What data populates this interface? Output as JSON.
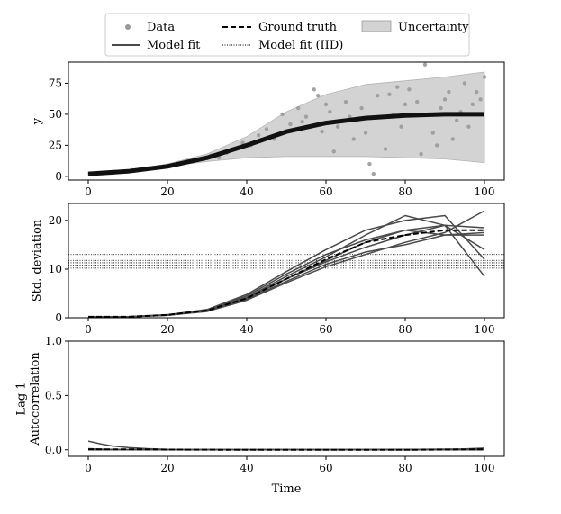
{
  "legend": {
    "data": "Data",
    "ground_truth": "Ground truth",
    "uncertainty": "Uncertainty",
    "model_fit": "Model fit",
    "model_fit_iid": "Model fit (IID)"
  },
  "colors": {
    "data": "#9a9a9a",
    "fit": "#4a4a4a",
    "band": "#d3d3d3",
    "truth": "#000000"
  },
  "chart_data": [
    {
      "type": "scatter",
      "xlabel": "",
      "ylabel": "y",
      "xlim": [
        -5,
        105
      ],
      "ylim": [
        -3,
        92
      ],
      "xticks": [
        0,
        20,
        40,
        60,
        80,
        100
      ],
      "yticks": [
        0,
        25,
        50,
        75
      ],
      "uncertainty_band": {
        "x": [
          0,
          10,
          20,
          30,
          40,
          50,
          60,
          70,
          80,
          90,
          100
        ],
        "lower": [
          1,
          4,
          8,
          12,
          15,
          16,
          16,
          16,
          15,
          14,
          11
        ],
        "upper": [
          3,
          5,
          10,
          18,
          32,
          52,
          66,
          74,
          77,
          80,
          84
        ]
      },
      "model_fit": {
        "x": [
          0,
          10,
          20,
          30,
          40,
          50,
          60,
          70,
          80,
          90,
          100
        ],
        "y": [
          2,
          4,
          8,
          15,
          25,
          36,
          43,
          47,
          49,
          50,
          50
        ]
      },
      "data_points": [
        [
          1,
          2
        ],
        [
          3,
          2.5
        ],
        [
          5,
          3
        ],
        [
          7,
          3.5
        ],
        [
          9,
          4
        ],
        [
          11,
          5
        ],
        [
          13,
          5.5
        ],
        [
          15,
          6.5
        ],
        [
          17,
          7
        ],
        [
          19,
          8
        ],
        [
          21,
          9
        ],
        [
          23,
          10
        ],
        [
          25,
          12
        ],
        [
          27,
          13
        ],
        [
          29,
          14
        ],
        [
          31,
          17
        ],
        [
          33,
          15
        ],
        [
          35,
          19
        ],
        [
          37,
          22
        ],
        [
          39,
          27
        ],
        [
          41,
          25
        ],
        [
          43,
          33
        ],
        [
          45,
          38
        ],
        [
          47,
          30
        ],
        [
          49,
          50
        ],
        [
          51,
          42
        ],
        [
          53,
          55
        ],
        [
          55,
          48
        ],
        [
          57,
          70
        ],
        [
          59,
          36
        ],
        [
          61,
          52
        ],
        [
          63,
          40
        ],
        [
          65,
          60
        ],
        [
          67,
          30
        ],
        [
          69,
          55
        ],
        [
          71,
          10
        ],
        [
          73,
          65
        ],
        [
          75,
          22
        ],
        [
          77,
          50
        ],
        [
          79,
          40
        ],
        [
          81,
          70
        ],
        [
          83,
          60
        ],
        [
          85,
          90
        ],
        [
          87,
          35
        ],
        [
          89,
          55
        ],
        [
          91,
          68
        ],
        [
          93,
          45
        ],
        [
          95,
          75
        ],
        [
          97,
          58
        ],
        [
          99,
          62
        ],
        [
          100,
          80
        ],
        [
          72,
          2
        ],
        [
          88,
          25
        ],
        [
          62,
          20
        ],
        [
          58,
          65
        ],
        [
          96,
          40
        ],
        [
          68,
          45
        ],
        [
          84,
          18
        ],
        [
          76,
          66
        ],
        [
          92,
          30
        ],
        [
          54,
          44
        ],
        [
          66,
          48
        ],
        [
          78,
          72
        ],
        [
          86,
          50
        ],
        [
          94,
          52
        ],
        [
          98,
          68
        ],
        [
          70,
          35
        ],
        [
          80,
          58
        ],
        [
          90,
          62
        ],
        [
          60,
          58
        ]
      ]
    },
    {
      "type": "line",
      "xlabel": "",
      "ylabel": "Std. deviation",
      "xlim": [
        -5,
        105
      ],
      "ylim": [
        0,
        23.5
      ],
      "xticks": [
        0,
        20,
        40,
        60,
        80,
        100
      ],
      "yticks": [
        0,
        10,
        20
      ],
      "iid_levels": [
        10.2,
        10.8,
        11.3,
        11.8,
        13.0
      ],
      "ground_truth": {
        "x": [
          0,
          10,
          20,
          30,
          40,
          50,
          60,
          70,
          80,
          90,
          100
        ],
        "y": [
          0.2,
          0.2,
          0.6,
          1.5,
          4,
          8,
          12,
          15.5,
          17,
          18,
          18
        ]
      },
      "model_fits": [
        {
          "x": [
            0,
            10,
            20,
            30,
            40,
            50,
            60,
            70,
            80,
            90,
            100
          ],
          "y": [
            0.2,
            0.2,
            0.5,
            1.5,
            4,
            8,
            11.5,
            14.5,
            17,
            19,
            18.5
          ]
        },
        {
          "x": [
            0,
            10,
            20,
            30,
            40,
            50,
            60,
            70,
            80,
            90,
            100
          ],
          "y": [
            0.2,
            0.2,
            0.6,
            1.6,
            4.5,
            9,
            13,
            16,
            18,
            19,
            14
          ]
        },
        {
          "x": [
            0,
            10,
            20,
            30,
            40,
            50,
            60,
            70,
            80,
            90,
            100
          ],
          "y": [
            0.2,
            0.2,
            0.6,
            1.4,
            3.8,
            7.5,
            11,
            13.5,
            15,
            17,
            17.5
          ]
        },
        {
          "x": [
            0,
            10,
            20,
            30,
            40,
            50,
            60,
            70,
            80,
            90,
            100
          ],
          "y": [
            0.2,
            0.2,
            0.5,
            1.5,
            4.2,
            8.5,
            12.5,
            17,
            21,
            19,
            8.5
          ]
        },
        {
          "x": [
            0,
            10,
            20,
            30,
            40,
            50,
            60,
            70,
            80,
            90,
            100
          ],
          "y": [
            0.2,
            0.2,
            0.6,
            1.7,
            4.8,
            9.5,
            14,
            18,
            20,
            21,
            12
          ]
        },
        {
          "x": [
            0,
            10,
            20,
            30,
            40,
            50,
            60,
            70,
            80,
            90,
            100
          ],
          "y": [
            0.2,
            0.2,
            0.5,
            1.3,
            3.6,
            7.2,
            10.5,
            13,
            15.5,
            17.5,
            22
          ]
        },
        {
          "x": [
            0,
            10,
            20,
            30,
            40,
            50,
            60,
            70,
            80,
            90,
            100
          ],
          "y": [
            0.2,
            0.2,
            0.6,
            1.5,
            4,
            8,
            11.8,
            15.5,
            18,
            17,
            17
          ]
        }
      ]
    },
    {
      "type": "line",
      "xlabel": "Time",
      "ylabel": "Lag 1 Autocorrelation",
      "ylabel_lines": [
        "Lag 1",
        "Autocorrelation"
      ],
      "xlim": [
        -5,
        105
      ],
      "ylim": [
        -0.06,
        1.0
      ],
      "xticks": [
        0,
        20,
        40,
        60,
        80,
        100
      ],
      "yticks": [
        0.0,
        0.5,
        1.0
      ],
      "ytick_labels": [
        "0.0",
        "0.5",
        "1.0"
      ],
      "ground_truth": {
        "x": [
          0,
          10,
          20,
          40,
          60,
          80,
          100
        ],
        "y": [
          0.005,
          0.005,
          0.002,
          0,
          0,
          0,
          0.005
        ]
      },
      "model_fits": [
        {
          "x": [
            0,
            3,
            6,
            10,
            15,
            20,
            40,
            60,
            80,
            95,
            100
          ],
          "y": [
            0.08,
            0.055,
            0.035,
            0.02,
            0.01,
            0.005,
            0.003,
            0.003,
            0.003,
            0.008,
            0.015
          ]
        },
        {
          "x": [
            0,
            5,
            10,
            20,
            60,
            100
          ],
          "y": [
            0.01,
            0.005,
            0.003,
            0.002,
            0.002,
            0.005
          ]
        },
        {
          "x": [
            0,
            5,
            10,
            20,
            60,
            100
          ],
          "y": [
            0,
            0,
            0,
            0,
            0,
            0
          ]
        }
      ]
    }
  ]
}
